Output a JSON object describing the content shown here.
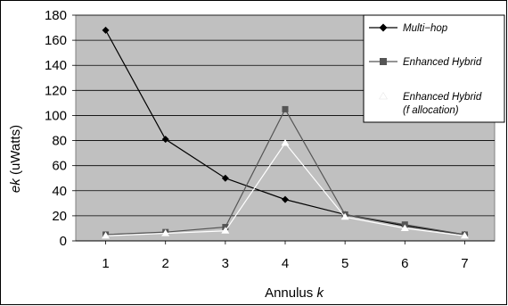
{
  "chart_data": {
    "type": "line",
    "xlabel_text": "Annulus ",
    "xlabel_var": "k",
    "ylabel_var": "ek",
    "ylabel_unit": "(uWatts)",
    "x": [
      1,
      2,
      3,
      4,
      5,
      6,
      7
    ],
    "xlim": [
      0.5,
      7.5
    ],
    "ylim": [
      0,
      180
    ],
    "yticks": [
      0,
      20,
      40,
      60,
      80,
      100,
      120,
      140,
      160,
      180
    ],
    "grid": true,
    "legend_position": "top-right",
    "background_color": "#c0c0c0",
    "series": [
      {
        "name": "Multi−hop",
        "marker": "diamond",
        "color": "#000000",
        "values": [
          168,
          81,
          50,
          33,
          21,
          12,
          5
        ]
      },
      {
        "name": "Enhanced Hybrid",
        "marker": "square",
        "color": "#555555",
        "values": [
          5,
          7,
          11,
          105,
          21,
          13,
          5
        ]
      },
      {
        "name": "Enhanced Hybrid",
        "name_line2": "(f allocation)",
        "marker": "triangle",
        "color": "#ffffff",
        "values": [
          4,
          6,
          8,
          78,
          19,
          10,
          4
        ]
      }
    ]
  }
}
